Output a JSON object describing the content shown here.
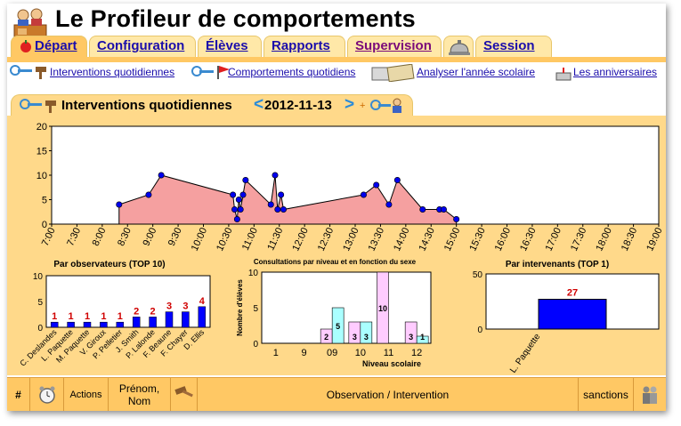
{
  "app": {
    "title": "Le Profileur de comportements"
  },
  "tabs": [
    {
      "label": "Départ",
      "active": true
    },
    {
      "label": "Configuration"
    },
    {
      "label": "Élèves"
    },
    {
      "label": "Rapports"
    },
    {
      "label": "Supervision"
    },
    {
      "label": "Session"
    }
  ],
  "subnav": [
    {
      "label": "Interventions quotidiennes",
      "icon": "keys-gavel-icon"
    },
    {
      "label": "Comportements quotidiens",
      "icon": "keys-flag-icon"
    },
    {
      "label": "Analyser l'année scolaire",
      "icon": "calendar-map-icon"
    },
    {
      "label": "Les anniversaires",
      "icon": "birthday-cake-icon"
    }
  ],
  "section": {
    "title": "Interventions quotidiennes",
    "date": "2012-11-13",
    "prev": "<",
    "next": ">",
    "plus": "+"
  },
  "colors": {
    "accent": "#ffc864",
    "panel": "#ffd98a",
    "area_fill": "#f5a0a0",
    "bar_blue": "#0000ff",
    "label_red": "#d00000"
  },
  "chart_data": [
    {
      "type": "area",
      "ylim": [
        0,
        20
      ],
      "yticks": [
        "0",
        "5",
        "10",
        "15",
        "20"
      ],
      "xticks": [
        "7:00",
        "7:30",
        "8:00",
        "8:30",
        "9:00",
        "9:30",
        "10:00",
        "10:30",
        "11:00",
        "11:30",
        "12:00",
        "12:30",
        "13:00",
        "13:30",
        "14:00",
        "14:30",
        "15:00",
        "15:30",
        "16:00",
        "16:30",
        "17:00",
        "17:30",
        "18:00",
        "18:30",
        "19:00"
      ],
      "points": [
        {
          "x": "8:20",
          "y": 4
        },
        {
          "x": "8:55",
          "y": 6
        },
        {
          "x": "9:10",
          "y": 10
        },
        {
          "x": "10:35",
          "y": 6
        },
        {
          "x": "10:37",
          "y": 3
        },
        {
          "x": "10:40",
          "y": 1
        },
        {
          "x": "10:42",
          "y": 5
        },
        {
          "x": "10:44",
          "y": 3
        },
        {
          "x": "10:47",
          "y": 6
        },
        {
          "x": "10:50",
          "y": 9
        },
        {
          "x": "11:20",
          "y": 4
        },
        {
          "x": "11:25",
          "y": 10
        },
        {
          "x": "11:28",
          "y": 3
        },
        {
          "x": "11:32",
          "y": 6
        },
        {
          "x": "11:35",
          "y": 3
        },
        {
          "x": "13:10",
          "y": 6
        },
        {
          "x": "13:25",
          "y": 8
        },
        {
          "x": "13:40",
          "y": 4
        },
        {
          "x": "13:50",
          "y": 9
        },
        {
          "x": "14:20",
          "y": 3
        },
        {
          "x": "14:40",
          "y": 3
        },
        {
          "x": "14:45",
          "y": 3
        },
        {
          "x": "15:00",
          "y": 1
        }
      ]
    },
    {
      "type": "bar",
      "title": "Par observateurs (TOP 10)",
      "ylim": [
        0,
        10
      ],
      "yticks": [
        "0",
        "5",
        "10"
      ],
      "categories": [
        "C. Deslandes",
        "L. Paquette",
        "M. Paquette",
        "V. Giroux",
        "P. Pelletier",
        "J. Smith",
        "P. Lalonde",
        "F. Beaune",
        "F. Chayer",
        "D. Ellis"
      ],
      "values": [
        1,
        1,
        1,
        1,
        1,
        2,
        2,
        3,
        3,
        4
      ]
    },
    {
      "type": "bar",
      "title": "Consultations par niveau et en fonction du sexe",
      "xlabel": "Niveau scolaire",
      "ylabel": "Nombre d'élèves",
      "ylim": [
        0,
        10
      ],
      "yticks": [
        "0",
        "5",
        "10"
      ],
      "categories": [
        "1",
        "9",
        "09",
        "10",
        "11",
        "12"
      ],
      "series": [
        {
          "values": [
            0,
            0,
            2,
            3,
            10,
            3
          ]
        },
        {
          "values": [
            0,
            0,
            5,
            3,
            0,
            1
          ]
        }
      ]
    },
    {
      "type": "bar",
      "title": "Par intervenants (TOP 1)",
      "ylim": [
        0,
        50
      ],
      "yticks": [
        "0",
        "50"
      ],
      "categories": [
        "L. Paquette"
      ],
      "values": [
        27
      ]
    }
  ],
  "table": {
    "columns": [
      {
        "label": "#"
      },
      {
        "label": "",
        "icon": "alarm-clock-icon"
      },
      {
        "label": "Actions"
      },
      {
        "label": "Prénom, Nom"
      },
      {
        "label": "",
        "icon": "gavel-icon"
      },
      {
        "label": "Observation / Intervention"
      },
      {
        "label": "sanctions"
      },
      {
        "label": "",
        "icon": "people-icon"
      }
    ]
  }
}
